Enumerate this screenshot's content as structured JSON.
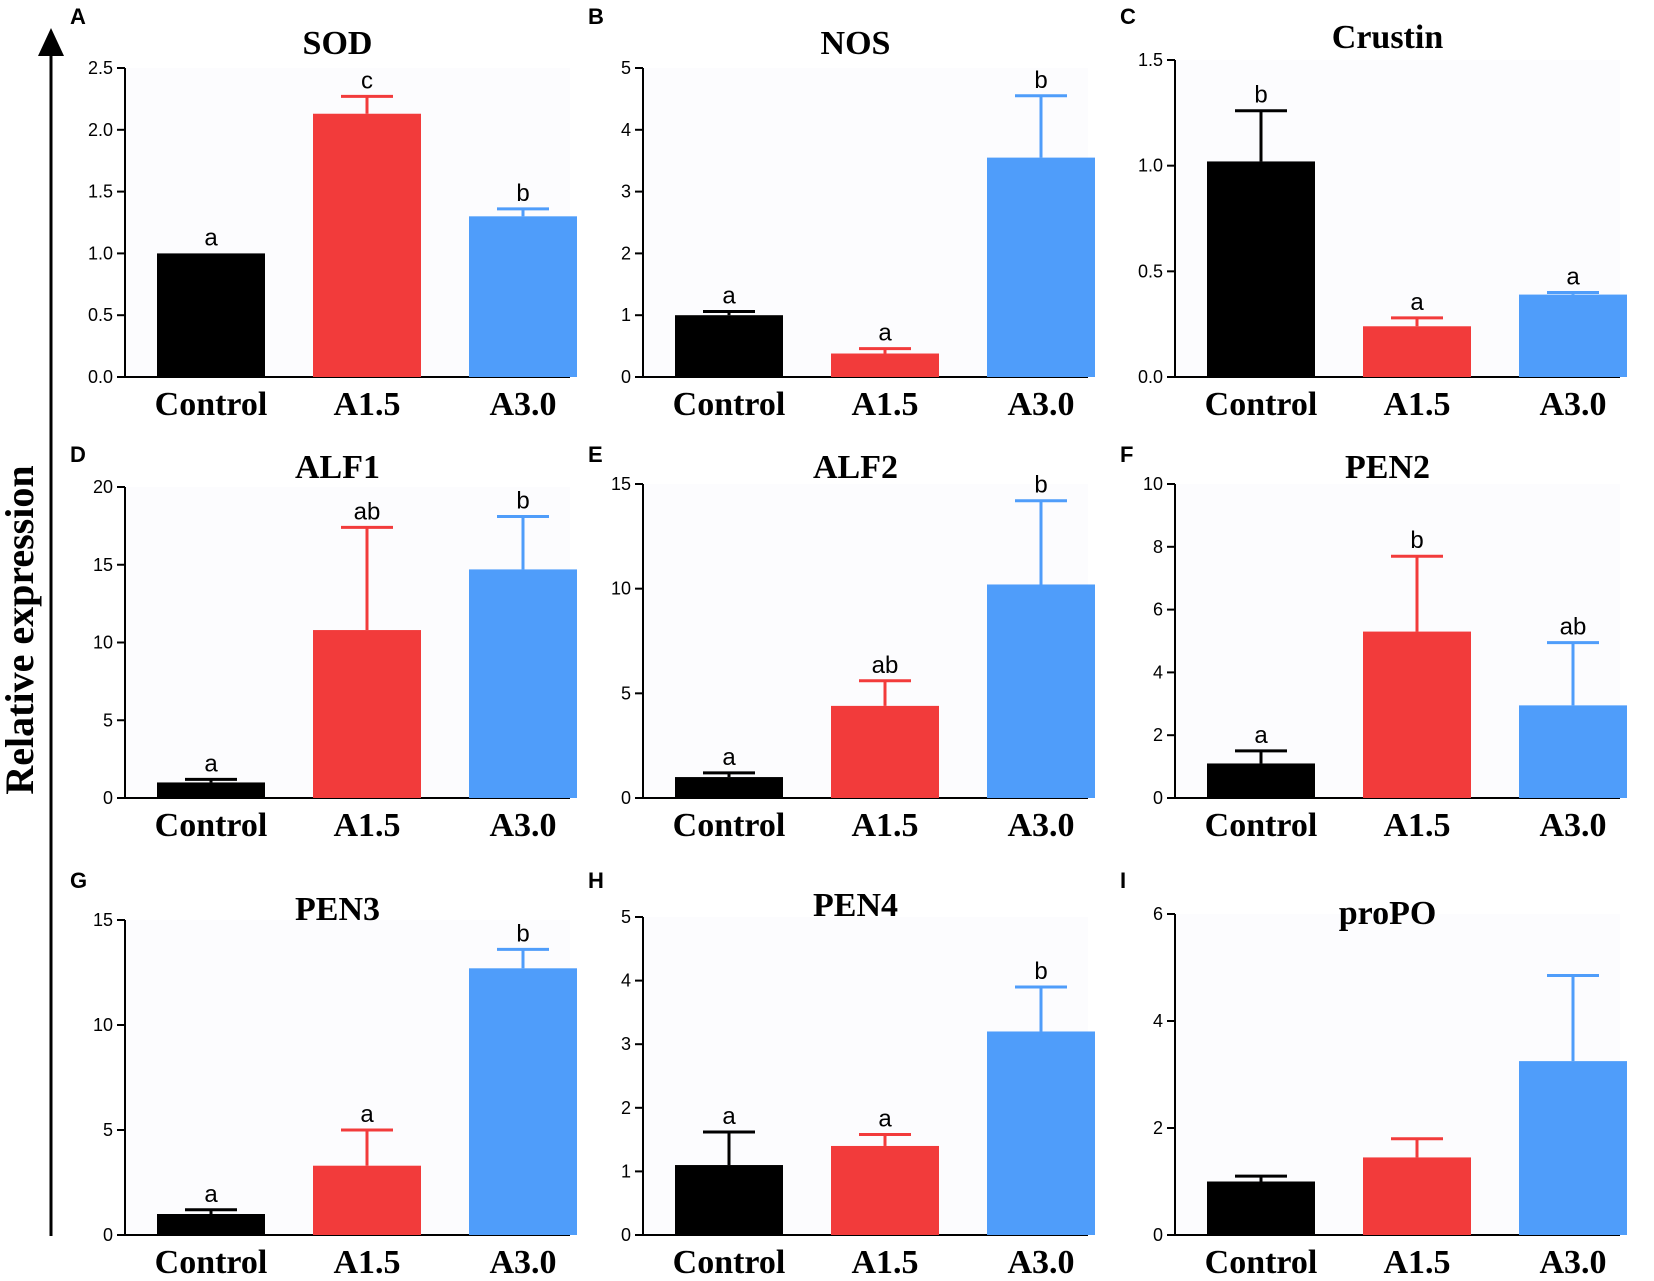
{
  "ylabel": "Relative expression",
  "colors": {
    "Control": "#000000",
    "A1.5": "#f23b3b",
    "A3.0": "#4f9dfa"
  },
  "chart_data": [
    {
      "panel": "A",
      "title": "SOD",
      "type": "bar",
      "categories": [
        "Control",
        "A1.5",
        "A3.0"
      ],
      "values": [
        1.0,
        2.13,
        1.3
      ],
      "errors": [
        0.0,
        0.14,
        0.06
      ],
      "sig": [
        "a",
        "c",
        "b"
      ],
      "ylim": [
        0,
        2.5
      ],
      "ticks": [
        "0.0",
        "0.5",
        "1.0",
        "1.5",
        "2.0",
        "2.5"
      ]
    },
    {
      "panel": "B",
      "title": "NOS",
      "type": "bar",
      "categories": [
        "Control",
        "A1.5",
        "A3.0"
      ],
      "values": [
        1.0,
        0.38,
        3.55
      ],
      "errors": [
        0.06,
        0.08,
        1.0
      ],
      "sig": [
        "a",
        "a",
        "b"
      ],
      "ylim": [
        0,
        5
      ],
      "ticks": [
        "0",
        "1",
        "2",
        "3",
        "4",
        "5"
      ]
    },
    {
      "panel": "C",
      "title": "Crustin",
      "type": "bar",
      "categories": [
        "Control",
        "A1.5",
        "A3.0"
      ],
      "values": [
        1.02,
        0.24,
        0.39
      ],
      "errors": [
        0.24,
        0.04,
        0.01
      ],
      "sig": [
        "b",
        "a",
        "a"
      ],
      "ylim": [
        0,
        1.5
      ],
      "ticks": [
        "0.0",
        "0.5",
        "1.0",
        "1.5"
      ]
    },
    {
      "panel": "D",
      "title": "ALF1",
      "type": "bar",
      "categories": [
        "Control",
        "A1.5",
        "A3.0"
      ],
      "values": [
        1.0,
        10.8,
        14.7
      ],
      "errors": [
        0.2,
        6.6,
        3.4
      ],
      "sig": [
        "a",
        "ab",
        "b"
      ],
      "ylim": [
        0,
        20
      ],
      "ticks": [
        "0",
        "5",
        "10",
        "15",
        "20"
      ]
    },
    {
      "panel": "E",
      "title": "ALF2",
      "type": "bar",
      "categories": [
        "Control",
        "A1.5",
        "A3.0"
      ],
      "values": [
        1.0,
        4.4,
        10.2
      ],
      "errors": [
        0.2,
        1.2,
        4.0
      ],
      "sig": [
        "a",
        "ab",
        "b"
      ],
      "ylim": [
        0,
        15
      ],
      "ticks": [
        "0",
        "5",
        "10",
        "15"
      ]
    },
    {
      "panel": "F",
      "title": "PEN2",
      "type": "bar",
      "categories": [
        "Control",
        "A1.5",
        "A3.0"
      ],
      "values": [
        1.1,
        5.3,
        2.95
      ],
      "errors": [
        0.4,
        2.4,
        2.0
      ],
      "sig": [
        "a",
        "b",
        "ab"
      ],
      "ylim": [
        0,
        10
      ],
      "ticks": [
        "0",
        "2",
        "4",
        "6",
        "8",
        "10"
      ]
    },
    {
      "panel": "G",
      "title": "PEN3",
      "type": "bar",
      "categories": [
        "Control",
        "A1.5",
        "A3.0"
      ],
      "values": [
        1.0,
        3.3,
        12.7
      ],
      "errors": [
        0.2,
        1.7,
        0.9
      ],
      "sig": [
        "a",
        "a",
        "b"
      ],
      "ylim": [
        0,
        15
      ],
      "ticks": [
        "0",
        "5",
        "10",
        "15"
      ]
    },
    {
      "panel": "H",
      "title": "PEN4",
      "type": "bar",
      "categories": [
        "Control",
        "A1.5",
        "A3.0"
      ],
      "values": [
        1.1,
        1.4,
        3.2
      ],
      "errors": [
        0.52,
        0.18,
        0.7
      ],
      "sig": [
        "a",
        "a",
        "b"
      ],
      "ylim": [
        0,
        5
      ],
      "ticks": [
        "0",
        "1",
        "2",
        "3",
        "4",
        "5"
      ]
    },
    {
      "panel": "I",
      "title": "proPO",
      "type": "bar",
      "categories": [
        "Control",
        "A1.5",
        "A3.0"
      ],
      "values": [
        1.0,
        1.45,
        3.25
      ],
      "errors": [
        0.1,
        0.35,
        1.6
      ],
      "sig": [
        "",
        "",
        ""
      ],
      "ylim": [
        0,
        6
      ],
      "ticks": [
        "0",
        "2",
        "4",
        "6"
      ]
    }
  ]
}
